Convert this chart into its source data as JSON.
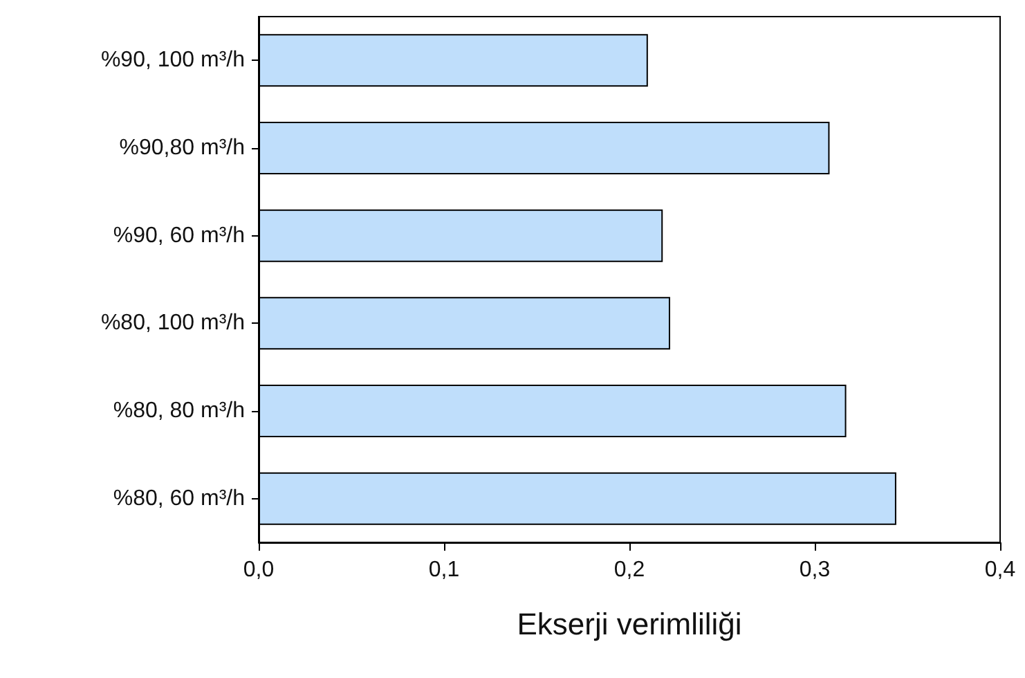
{
  "chart_data": {
    "type": "bar",
    "orientation": "horizontal",
    "xlabel": "Ekserji verimliliği",
    "categories": [
      "%90, 100 m³/h",
      "%90,80 m³/h",
      "%90, 60 m³/h",
      "%80, 100 m³/h",
      "%80, 80 m³/h",
      "%80, 60 m³/h"
    ],
    "values": [
      0.21,
      0.308,
      0.218,
      0.222,
      0.317,
      0.344
    ],
    "color": "#bfdefb",
    "xlim": [
      0,
      0.4
    ],
    "xticks": [
      {
        "value": 0,
        "label": "0,0"
      },
      {
        "value": 0.1,
        "label": "0,1"
      },
      {
        "value": 0.2,
        "label": "0,2"
      },
      {
        "value": 0.3,
        "label": "0,3"
      },
      {
        "value": 0.4,
        "label": "0,4"
      }
    ],
    "grid": false
  }
}
